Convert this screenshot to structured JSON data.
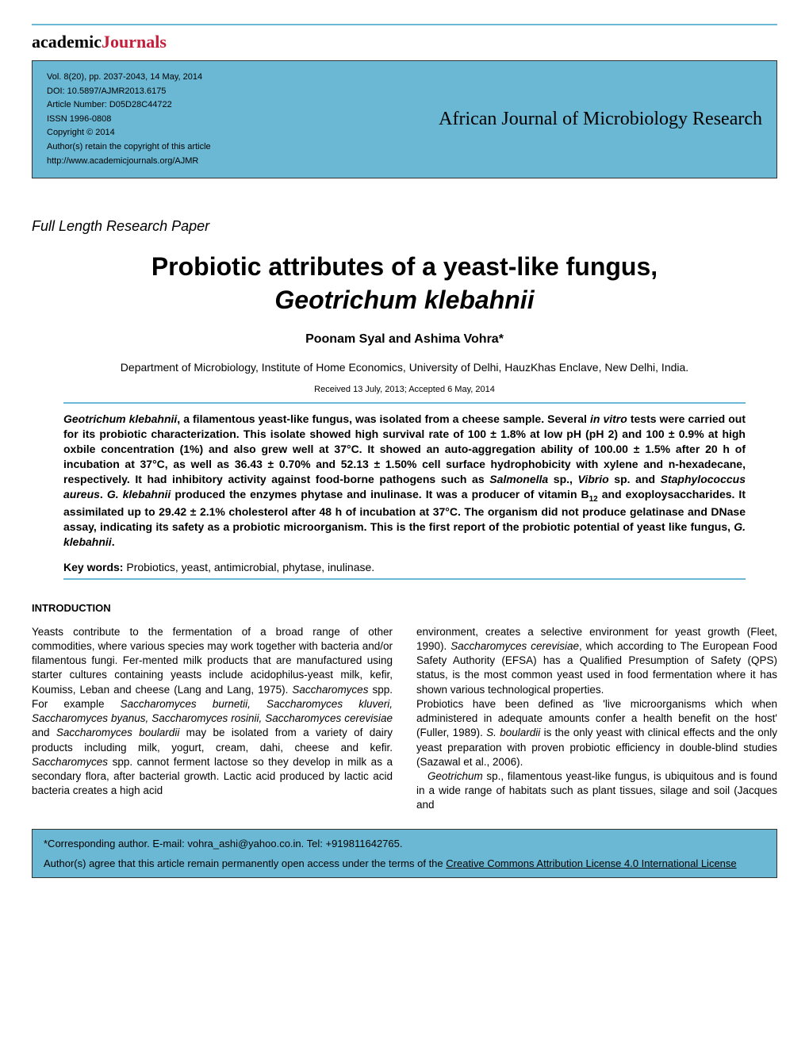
{
  "logo": {
    "prefix": "academic",
    "suffix": "Journals"
  },
  "meta": {
    "volume": "Vol. 8(20), pp. 2037-2043, 14 May, 2014",
    "doi": "DOI: 10.5897/AJMR2013.6175",
    "article_number": "Article Number: D05D28C44722",
    "issn": "ISSN 1996-0808",
    "copyright": "Copyright © 2014",
    "rights": "Author(s) retain the copyright of this article",
    "url": "http://www.academicjournals.org/AJMR"
  },
  "journal_title": "African Journal of Microbiology Research",
  "paper_type": "Full Length Research Paper",
  "title_line1": "Probiotic attributes of a yeast-like fungus,",
  "title_line2": "Geotrichum klebahnii",
  "authors": "Poonam Syal and Ashima Vohra*",
  "affiliation": "Department of Microbiology, Institute of Home Economics, University of Delhi, HauzKhas Enclave, New Delhi, India.",
  "dates": "Received 13 July, 2013; Accepted 6 May, 2014",
  "abstract": {
    "p1a": "Geotrichum klebahnii",
    "p1b": ", a filamentous yeast-like fungus, was isolated from a cheese sample. Several ",
    "p1c": "in vitro",
    "p1d": " tests were carried out for its probiotic characterization. This isolate showed high survival rate of 100 ± 1.8% at low pH (pH 2) and 100 ± 0.9% at high oxbile concentration (1%) and also grew well at 37°C. It showed an auto-aggregation ability of 100.00 ± 1.5% after 20 h of incubation at 37°C, as well as 36.43 ± 0.70% and 52.13 ± 1.50% cell surface hydrophobicity with xylene and n-hexadecane, respectively. It had inhibitory activity against food-borne pathogens such as ",
    "p1e": "Salmonella",
    "p1f": " sp., ",
    "p1g": "Vibrio",
    "p1h": " sp. and ",
    "p1i": "Staphylococcus aureus",
    "p1j": ". ",
    "p1k": "G. klebahnii",
    "p1l": " produced the enzymes phytase and inulinase. It was a producer of vitamin B",
    "p1m": "12",
    "p1n": " and exoploysaccharides. It assimilated up to 29.42 ± 2.1% cholesterol after 48 h of incubation at 37°C. The organism did not produce gelatinase and DNase assay, indicating its safety as a probiotic microorganism. This is the first report of the probiotic potential of yeast like fungus, ",
    "p1o": "G. klebahnii",
    "p1p": "."
  },
  "keywords_label": "Key words:",
  "keywords_text": " Probiotics, yeast, antimicrobial, phytase, inulinase.",
  "intro_heading": "INTRODUCTION",
  "col1": {
    "a": "Yeasts contribute to the fermentation of a broad range of other commodities, where various species may work together with bacteria and/or filamentous fungi. Fer-mented milk products that are manufactured using starter cultures containing yeasts include acidophilus-yeast milk, kefir, Koumiss, Leban and cheese (Lang and Lang, 1975). ",
    "b": "Saccharomyces",
    "c": " spp. For example ",
    "d": "Saccharomyces burnetii, Saccharomyces kluveri, Saccharomyces byanus, Saccharomyces rosinii, Saccharomyces cerevisiae",
    "e": " and ",
    "f": "Saccharomyces boulardii",
    "g": " may be isolated from a variety of dairy products including milk, yogurt, cream, dahi, cheese and kefir. ",
    "h": "Saccharomyces",
    "i": " spp. cannot ferment lactose so they develop in milk as a secondary flora, after bacterial growth. Lactic acid produced by lactic acid bacteria creates a high acid"
  },
  "col2": {
    "a": "environment, creates a selective environment for yeast growth (Fleet, 1990). ",
    "b": "Saccharomyces cerevisiae",
    "c": ", which according to The European Food Safety Authority (EFSA) has a Qualified Presumption of Safety (QPS) status, is the most common yeast used in food fermentation where it has shown various technological properties.",
    "d": "Probiotics have been defined as 'live microorganisms which when administered in adequate amounts confer a health benefit on the host' (Fuller, 1989). ",
    "e": "S. boulardii",
    "f": " is the only yeast with clinical effects and the only yeast preparation with proven probiotic efficiency in double-blind studies (Sazawal et al., 2006).",
    "g": "Geotrichum",
    "h": " sp., filamentous yeast-like fungus, is ubiquitous and is found in a wide range of habitats such as plant tissues, silage and soil (Jacques and"
  },
  "footer": {
    "corresponding": "*Corresponding author. E-mail: vohra_ashi@yahoo.co.in. Tel: +919811642765.",
    "license_a": "Author(s) agree that this article remain permanently open access under the terms of the ",
    "license_link": "Creative Commons Attribution License 4.0 International License"
  },
  "colors": {
    "accent": "#6ab8d4",
    "logo_red": "#c41e3a",
    "text": "#000000",
    "background": "#ffffff"
  }
}
